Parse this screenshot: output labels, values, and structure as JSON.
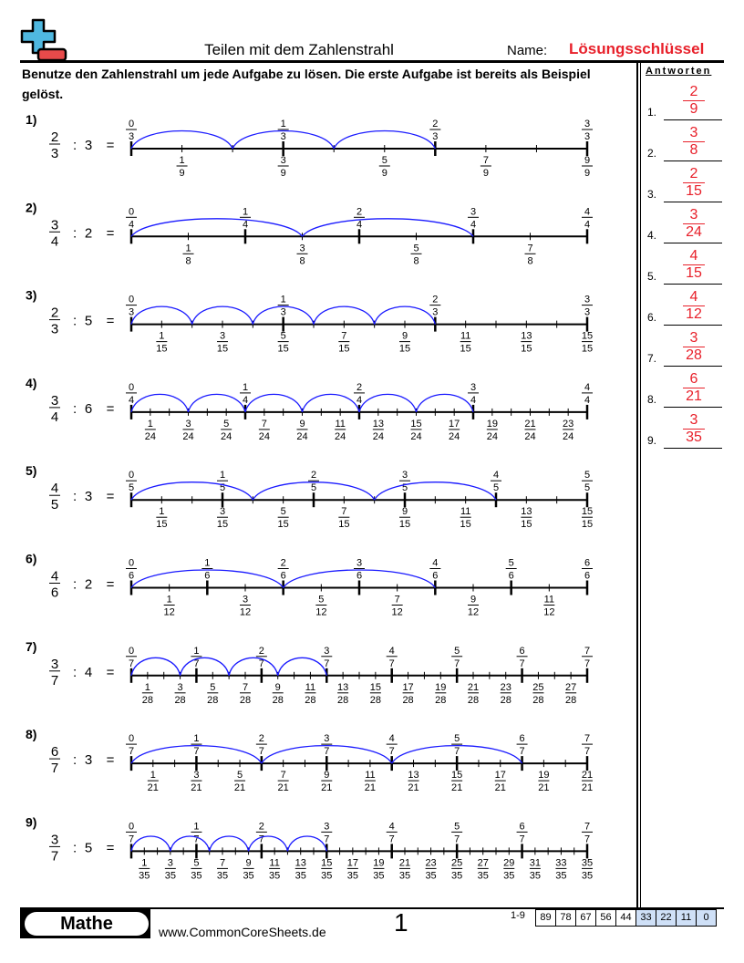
{
  "header": {
    "title": "Teilen mit dem Zahlenstrahl",
    "name_label": "Name:",
    "name_value": "Lösungsschlüssel",
    "logo": "plus-minus-logo-icon"
  },
  "instructions": "Benutze den Zahlenstrahl um jede Aufgabe zu lösen. Die erste Aufgabe ist bereits als Beispiel gelöst.",
  "colors": {
    "arc": "#1a1aff",
    "answer": "#e8202a",
    "logo_plus": "#4fb8e0",
    "logo_minus": "#e84a4a",
    "score_highlight": "#cfe0f7"
  },
  "problems": [
    {
      "label": "1)",
      "numerator": "2",
      "denominator": "3",
      "op": ":",
      "divisor": "3",
      "eq": "="
    },
    {
      "label": "2)",
      "numerator": "3",
      "denominator": "4",
      "op": ":",
      "divisor": "2",
      "eq": "="
    },
    {
      "label": "3)",
      "numerator": "2",
      "denominator": "3",
      "op": ":",
      "divisor": "5",
      "eq": "="
    },
    {
      "label": "4)",
      "numerator": "3",
      "denominator": "4",
      "op": ":",
      "divisor": "6",
      "eq": "="
    },
    {
      "label": "5)",
      "numerator": "4",
      "denominator": "5",
      "op": ":",
      "divisor": "3",
      "eq": "="
    },
    {
      "label": "6)",
      "numerator": "4",
      "denominator": "6",
      "op": ":",
      "divisor": "2",
      "eq": "="
    },
    {
      "label": "7)",
      "numerator": "3",
      "denominator": "7",
      "op": ":",
      "divisor": "4",
      "eq": "="
    },
    {
      "label": "8)",
      "numerator": "6",
      "denominator": "7",
      "op": ":",
      "divisor": "3",
      "eq": "="
    },
    {
      "label": "9)",
      "numerator": "3",
      "denominator": "7",
      "op": ":",
      "divisor": "5",
      "eq": "="
    }
  ],
  "answers": {
    "heading": "Antworten",
    "items": [
      {
        "n": "1.",
        "num": "2",
        "den": "9"
      },
      {
        "n": "2.",
        "num": "3",
        "den": "8"
      },
      {
        "n": "3.",
        "num": "2",
        "den": "15"
      },
      {
        "n": "4.",
        "num": "3",
        "den": "24"
      },
      {
        "n": "5.",
        "num": "4",
        "den": "15"
      },
      {
        "n": "6.",
        "num": "4",
        "den": "12"
      },
      {
        "n": "7.",
        "num": "3",
        "den": "28"
      },
      {
        "n": "8.",
        "num": "6",
        "den": "21"
      },
      {
        "n": "9.",
        "num": "3",
        "den": "35"
      }
    ]
  },
  "footer": {
    "brand": "Mathe",
    "site": "www.CommonCoreSheets.de",
    "page": "1",
    "range": "1-9",
    "scores": [
      "89",
      "78",
      "67",
      "56",
      "44",
      "33",
      "22",
      "11",
      "0"
    ]
  }
}
